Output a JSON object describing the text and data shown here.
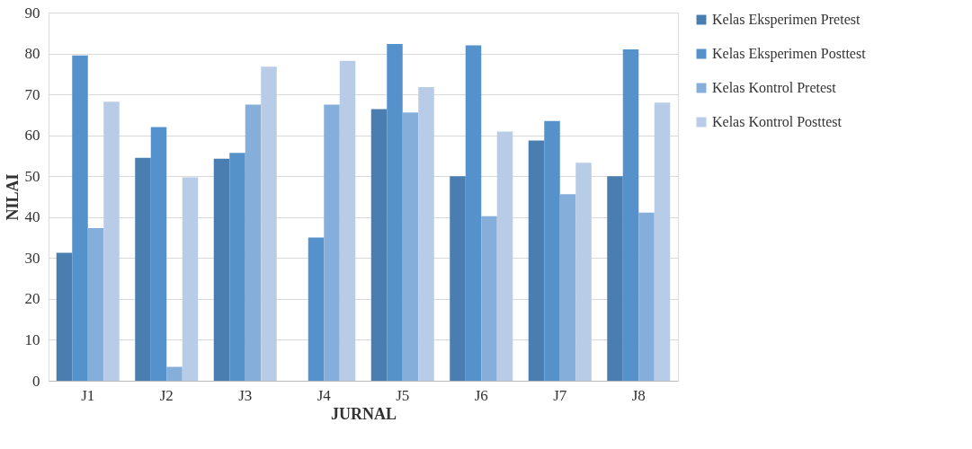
{
  "chart_data": {
    "type": "bar",
    "xlabel": "JURNAL",
    "ylabel": "NILAI",
    "categories": [
      "J1",
      "J2",
      "J3",
      "J4",
      "J5",
      "J6",
      "J7",
      "J8"
    ],
    "series": [
      {
        "name": "Kelas Eksperimen Pretest",
        "color": "#4a7db0",
        "values": [
          31.3,
          54.5,
          54.3,
          null,
          66.4,
          50,
          58.7,
          50
        ]
      },
      {
        "name": "Kelas Eksperimen Posttest",
        "color": "#5592cb",
        "values": [
          79.5,
          62,
          55.7,
          35,
          82.3,
          82,
          63.5,
          81
        ]
      },
      {
        "name": "Kelas Kontrol Pretest",
        "color": "#86aedb",
        "values": [
          37.3,
          3.4,
          67.5,
          67.5,
          65.6,
          40.2,
          45.6,
          41.1
        ]
      },
      {
        "name": "Kelas Kontrol Posttest",
        "color": "#b8cce8",
        "values": [
          68.2,
          49.7,
          76.8,
          78.2,
          71.8,
          60.9,
          53.3,
          68
        ]
      }
    ],
    "ylim": [
      0,
      90
    ],
    "yticks": [
      0,
      10,
      20,
      30,
      40,
      50,
      60,
      70,
      80,
      90
    ],
    "grid": "y",
    "legend": "right"
  }
}
